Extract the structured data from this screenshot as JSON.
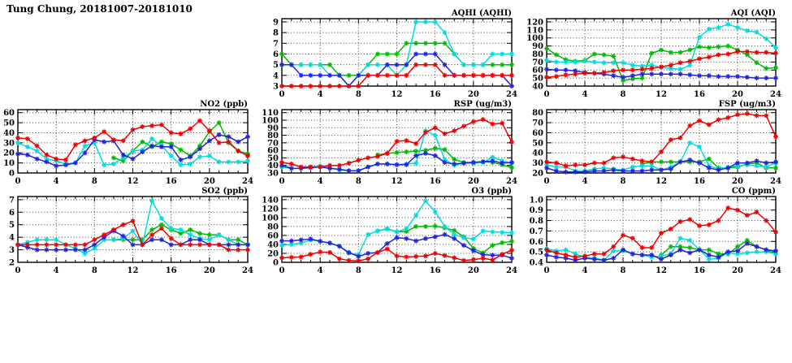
{
  "page": {
    "title": "Tung Chung, 20181007-20181010"
  },
  "colors": {
    "red": "#ee0000",
    "green": "#00bb00",
    "blue": "#2323dd",
    "cyan": "#00dcdc"
  },
  "chart_data": [
    {
      "id": "aqhi",
      "type": "line",
      "title": "AQHI (AQHI)",
      "xlim": [
        0,
        24
      ],
      "xticks": [
        0,
        4,
        8,
        12,
        16,
        20,
        24
      ],
      "ylim": [
        3,
        9
      ],
      "yticks": [
        3,
        4,
        5,
        6,
        7,
        8,
        9
      ],
      "ytick_labels": [
        "3",
        "4",
        "5",
        "6",
        "7",
        "8",
        "9"
      ],
      "series": [
        {
          "name": "green",
          "start": 0,
          "values": [
            6,
            5,
            5,
            5,
            5,
            5,
            4,
            4,
            4,
            5,
            6,
            6,
            6,
            7,
            7,
            7,
            7,
            7,
            6,
            5,
            5,
            5,
            5,
            5,
            5
          ]
        },
        {
          "name": "cyan",
          "start": 0,
          "values": [
            5,
            5,
            5,
            5,
            5,
            4,
            4,
            3,
            4,
            5,
            5,
            5,
            4,
            5,
            9,
            9,
            9,
            8,
            6,
            5,
            5,
            5,
            6,
            6,
            6
          ]
        },
        {
          "name": "blue",
          "start": 0,
          "values": [
            5,
            5,
            4,
            4,
            4,
            4,
            4,
            3,
            4,
            4,
            4,
            5,
            5,
            5,
            6,
            6,
            6,
            5,
            4,
            4,
            4,
            4,
            4,
            4,
            3
          ]
        },
        {
          "name": "red",
          "start": 0,
          "values": [
            3,
            3,
            3,
            3,
            3,
            3,
            3,
            3,
            3,
            4,
            4,
            4,
            4,
            4,
            5,
            5,
            5,
            4,
            4,
            4,
            4,
            4,
            4,
            4,
            4
          ]
        }
      ]
    },
    {
      "id": "aqi",
      "type": "line",
      "title": "AQI (AQI)",
      "xlim": [
        0,
        24
      ],
      "xticks": [
        0,
        4,
        8,
        12,
        16,
        20,
        24
      ],
      "ylim": [
        40,
        120
      ],
      "yticks": [
        40,
        50,
        60,
        70,
        80,
        90,
        100,
        110,
        120
      ],
      "ytick_labels": [
        "40",
        "50",
        "60",
        "70",
        "80",
        "90",
        "100",
        "110",
        "120"
      ],
      "series": [
        {
          "name": "green",
          "start": 0,
          "values": [
            87,
            79,
            73,
            71,
            72,
            80,
            79,
            77,
            47,
            49,
            50,
            81,
            85,
            82,
            82,
            85,
            89,
            88,
            89,
            90,
            85,
            79,
            69,
            62,
            63
          ]
        },
        {
          "name": "cyan",
          "start": 0,
          "values": [
            72,
            70,
            70,
            70,
            71,
            70,
            69,
            69,
            69,
            66,
            65,
            66,
            63,
            62,
            61,
            66,
            101,
            111,
            113,
            117,
            113,
            109,
            107,
            99,
            88
          ]
        },
        {
          "name": "blue",
          "start": 0,
          "values": [
            61,
            60,
            60,
            59,
            57,
            56,
            55,
            53,
            51,
            53,
            55,
            55,
            55,
            55,
            55,
            54,
            53,
            53,
            52,
            52,
            52,
            51,
            50,
            50,
            50
          ]
        },
        {
          "name": "red",
          "start": 0,
          "values": [
            51,
            52,
            54,
            55,
            56,
            56,
            57,
            59,
            60,
            60,
            61,
            62,
            64,
            66,
            69,
            71,
            74,
            76,
            79,
            80,
            83,
            83,
            82,
            82,
            81
          ]
        }
      ]
    },
    {
      "id": "no2",
      "type": "line",
      "title": "NO2 (ppb)",
      "xlim": [
        0,
        24
      ],
      "xticks": [
        0,
        4,
        8,
        12,
        16,
        20,
        24
      ],
      "ylim": [
        0,
        60
      ],
      "yticks": [
        0,
        10,
        20,
        30,
        40,
        50,
        60
      ],
      "ytick_labels": [
        "0",
        "10",
        "20",
        "30",
        "40",
        "50",
        "60"
      ],
      "series": [
        {
          "name": "green",
          "start": 10,
          "values": [
            15,
            12,
            22,
            31,
            26,
            31,
            29,
            23,
            17,
            27,
            41,
            50,
            30,
            22,
            19
          ]
        },
        {
          "name": "cyan",
          "start": 0,
          "values": [
            30,
            26,
            22,
            14,
            12,
            9,
            10,
            27,
            30,
            8,
            9,
            15,
            22,
            23,
            34,
            27,
            17,
            8,
            9,
            16,
            17,
            11,
            11,
            11,
            12
          ]
        },
        {
          "name": "blue",
          "start": 0,
          "values": [
            19,
            18,
            14,
            11,
            7,
            8,
            10,
            20,
            33,
            31,
            32,
            18,
            14,
            21,
            27,
            26,
            26,
            13,
            16,
            24,
            32,
            38,
            36,
            31,
            36
          ]
        },
        {
          "name": "red",
          "start": 0,
          "values": [
            35,
            34,
            27,
            18,
            14,
            13,
            28,
            32,
            35,
            41,
            33,
            32,
            43,
            46,
            47,
            48,
            40,
            39,
            44,
            52,
            42,
            30,
            31,
            22,
            17
          ]
        }
      ]
    },
    {
      "id": "rsp",
      "type": "line",
      "title": "RSP (ug/m3)",
      "xlim": [
        0,
        24
      ],
      "xticks": [
        0,
        4,
        8,
        12,
        16,
        20,
        24
      ],
      "ylim": [
        30,
        110
      ],
      "yticks": [
        30,
        40,
        50,
        60,
        70,
        80,
        90,
        100,
        110
      ],
      "ytick_labels": [
        "30",
        "40",
        "50",
        "60",
        "70",
        "80",
        "90",
        "100",
        "110"
      ],
      "series": [
        {
          "name": "green",
          "start": 10,
          "values": [
            54,
            56,
            57,
            58,
            59,
            60,
            63,
            61,
            48,
            44,
            44,
            45,
            44,
            41,
            37
          ]
        },
        {
          "name": "cyan",
          "start": 0,
          "values": [
            38,
            36,
            36,
            38,
            39,
            37,
            34,
            33,
            33,
            38,
            42,
            42,
            41,
            42,
            43,
            86,
            80,
            48,
            40,
            43,
            43,
            44,
            51,
            46,
            43
          ]
        },
        {
          "name": "blue",
          "start": 0,
          "values": [
            40,
            36,
            36,
            37,
            38,
            36,
            35,
            33,
            33,
            38,
            42,
            42,
            41,
            41,
            53,
            56,
            53,
            44,
            42,
            43,
            44,
            45,
            46,
            43,
            44
          ]
        },
        {
          "name": "red",
          "start": 0,
          "values": [
            44,
            42,
            38,
            38,
            38,
            40,
            40,
            43,
            47,
            50,
            52,
            56,
            72,
            73,
            69,
            84,
            90,
            82,
            86,
            92,
            98,
            101,
            95,
            96,
            71
          ]
        }
      ]
    },
    {
      "id": "fsp",
      "type": "line",
      "title": "FSP (ug/m3)",
      "xlim": [
        0,
        24
      ],
      "xticks": [
        0,
        4,
        8,
        12,
        16,
        20,
        24
      ],
      "ylim": [
        20,
        80
      ],
      "yticks": [
        20,
        30,
        40,
        50,
        60,
        70,
        80
      ],
      "ytick_labels": [
        "20",
        "30",
        "40",
        "50",
        "60",
        "70",
        "80"
      ],
      "series": [
        {
          "name": "green",
          "start": 10,
          "values": [
            29,
            31,
            31,
            31,
            31,
            31,
            31,
            34,
            25,
            25,
            26,
            29,
            30,
            25,
            25
          ]
        },
        {
          "name": "cyan",
          "start": 0,
          "values": [
            28,
            26,
            26,
            22,
            22,
            24,
            25,
            24,
            23,
            26,
            27,
            27,
            23,
            26,
            31,
            50,
            46,
            27,
            24,
            26,
            27,
            28,
            27,
            26,
            30
          ]
        },
        {
          "name": "blue",
          "start": 0,
          "values": [
            25,
            22,
            21,
            21,
            21,
            22,
            22,
            23,
            22,
            22,
            22,
            23,
            23,
            24,
            31,
            33,
            30,
            25,
            23,
            25,
            30,
            30,
            32,
            30,
            31
          ]
        },
        {
          "name": "red",
          "start": 0,
          "values": [
            31,
            30,
            27,
            28,
            28,
            30,
            30,
            35,
            36,
            34,
            32,
            31,
            41,
            53,
            55,
            67,
            72,
            68,
            73,
            75,
            78,
            79,
            77,
            77,
            56
          ]
        }
      ]
    },
    {
      "id": "so2",
      "type": "line",
      "title": "SO2 (ppb)",
      "xlim": [
        0,
        24
      ],
      "xticks": [
        0,
        4,
        8,
        12,
        16,
        20,
        24
      ],
      "ylim": [
        2,
        7
      ],
      "yticks": [
        2,
        3,
        4,
        5,
        6,
        7
      ],
      "ytick_labels": [
        "2",
        "3",
        "4",
        "5",
        "6",
        "7"
      ],
      "series": [
        {
          "name": "green",
          "start": 9,
          "values": [
            3.8,
            3.8,
            3.8,
            3.8,
            3.8,
            4.6,
            5.0,
            4.6,
            4.3,
            4.6,
            4.3,
            4.2,
            4.2,
            3.8,
            3.8,
            3.4
          ]
        },
        {
          "name": "cyan",
          "start": 0,
          "values": [
            3.4,
            3.6,
            3.8,
            3.8,
            3.8,
            3.4,
            3.1,
            2.7,
            3.1,
            3.8,
            3.8,
            3.9,
            4.5,
            3.4,
            6.9,
            5.5,
            4.7,
            4.6,
            4.2,
            3.9,
            3.8,
            4.2,
            3.8,
            3.4,
            3.4
          ]
        },
        {
          "name": "blue",
          "start": 0,
          "values": [
            3.4,
            3.2,
            3.0,
            3.0,
            3.0,
            3.0,
            3.0,
            3.0,
            3.4,
            4.0,
            4.5,
            4.1,
            3.4,
            3.4,
            3.8,
            3.8,
            3.4,
            3.4,
            3.8,
            3.8,
            3.4,
            3.4,
            3.4,
            3.4,
            3.4
          ]
        },
        {
          "name": "red",
          "start": 0,
          "values": [
            3.4,
            3.4,
            3.4,
            3.4,
            3.4,
            3.4,
            3.4,
            3.4,
            3.8,
            4.2,
            4.6,
            5.0,
            5.3,
            3.4,
            4.2,
            4.7,
            3.9,
            3.4,
            3.4,
            3.4,
            3.4,
            3.4,
            3.0,
            3.0,
            3.0
          ]
        }
      ]
    },
    {
      "id": "o3",
      "type": "line",
      "title": "O3 (ppb)",
      "xlim": [
        0,
        24
      ],
      "xticks": [
        0,
        4,
        8,
        12,
        16,
        20,
        24
      ],
      "ylim": [
        0,
        140
      ],
      "yticks": [
        0,
        20,
        40,
        60,
        80,
        100,
        120,
        140
      ],
      "ytick_labels": [
        "0",
        "20",
        "40",
        "60",
        "80",
        "100",
        "120",
        "140"
      ],
      "series": [
        {
          "name": "green",
          "start": 10,
          "values": [
            70,
            75,
            68,
            69,
            80,
            80,
            81,
            77,
            71,
            57,
            31,
            21,
            38,
            44,
            47
          ]
        },
        {
          "name": "cyan",
          "start": 0,
          "values": [
            38,
            40,
            43,
            50,
            47,
            43,
            36,
            20,
            17,
            62,
            70,
            74,
            68,
            75,
            105,
            137,
            113,
            80,
            62,
            55,
            52,
            70,
            68,
            67,
            66
          ]
        },
        {
          "name": "blue",
          "start": 0,
          "values": [
            48,
            48,
            50,
            52,
            47,
            43,
            36,
            22,
            13,
            20,
            22,
            42,
            55,
            53,
            48,
            53,
            57,
            62,
            53,
            38,
            26,
            17,
            16,
            16,
            9
          ]
        },
        {
          "name": "red",
          "start": 0,
          "values": [
            10,
            11,
            12,
            18,
            23,
            22,
            8,
            4,
            3,
            8,
            22,
            30,
            14,
            12,
            13,
            14,
            20,
            15,
            10,
            4,
            6,
            9,
            5,
            18,
            27
          ]
        }
      ]
    },
    {
      "id": "co",
      "type": "line",
      "title": "CO (ppm)",
      "xlim": [
        0,
        24
      ],
      "xticks": [
        0,
        4,
        8,
        12,
        16,
        20,
        24
      ],
      "ylim": [
        0.4,
        1.0
      ],
      "yticks": [
        0.4,
        0.5,
        0.6,
        0.7,
        0.8,
        0.9,
        1.0
      ],
      "ytick_labels": [
        "0.4",
        "0.5",
        "0.6",
        "0.7",
        "0.8",
        "0.9",
        "1.0"
      ],
      "series": [
        {
          "name": "green",
          "start": 12,
          "values": [
            0.47,
            0.55,
            0.55,
            0.54,
            0.52,
            0.52,
            0.48,
            0.48,
            0.55,
            0.61,
            0.55,
            0.52,
            0.48
          ]
        },
        {
          "name": "cyan",
          "start": 0,
          "values": [
            0.53,
            0.51,
            0.52,
            0.48,
            0.45,
            0.44,
            0.42,
            0.51,
            0.51,
            0.48,
            0.47,
            0.45,
            0.46,
            0.48,
            0.63,
            0.61,
            0.52,
            0.43,
            0.44,
            0.49,
            0.48,
            0.49,
            0.5,
            0.5,
            0.48
          ]
        },
        {
          "name": "blue",
          "start": 0,
          "values": [
            0.47,
            0.45,
            0.44,
            0.42,
            0.44,
            0.43,
            0.42,
            0.44,
            0.52,
            0.48,
            0.47,
            0.47,
            0.43,
            0.47,
            0.52,
            0.49,
            0.52,
            0.47,
            0.45,
            0.5,
            0.51,
            0.58,
            0.55,
            0.52,
            0.51
          ]
        },
        {
          "name": "red",
          "start": 0,
          "values": [
            0.52,
            0.49,
            0.47,
            0.45,
            0.46,
            0.48,
            0.48,
            0.55,
            0.66,
            0.63,
            0.54,
            0.54,
            0.68,
            0.72,
            0.79,
            0.81,
            0.75,
            0.76,
            0.8,
            0.92,
            0.9,
            0.85,
            0.88,
            0.8,
            0.69
          ]
        }
      ]
    }
  ]
}
